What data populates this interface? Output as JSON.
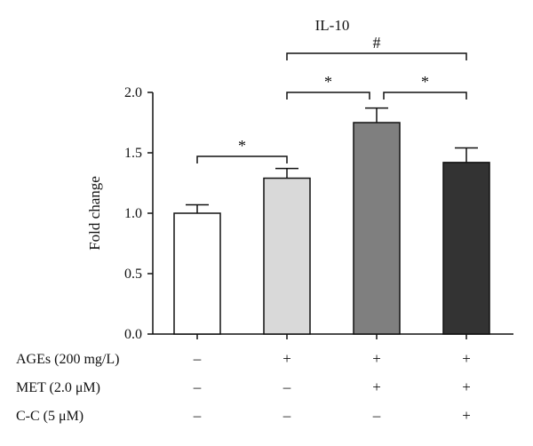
{
  "chart_data": {
    "type": "bar",
    "title": "IL-10",
    "ylabel": "Fold change",
    "xlabel": "",
    "ylim": [
      0,
      2.0
    ],
    "yticks": [
      "0.0",
      "0.5",
      "1.0",
      "1.5",
      "2.0"
    ],
    "grid": false,
    "bars": [
      {
        "value": 1.0,
        "error": 0.07,
        "color": "#ffffff"
      },
      {
        "value": 1.29,
        "error": 0.08,
        "color": "#d9d9d9"
      },
      {
        "value": 1.75,
        "error": 0.12,
        "color": "#7f7f7f"
      },
      {
        "value": 1.42,
        "error": 0.12,
        "color": "#333333"
      }
    ],
    "condition_rows": [
      {
        "label": "AGEs (200 mg/L)",
        "signs": [
          "–",
          "+",
          "+",
          "+"
        ]
      },
      {
        "label": "MET (2.0 μM)",
        "signs": [
          "–",
          "–",
          "+",
          "+"
        ]
      },
      {
        "label": "C-C (5 μM)",
        "signs": [
          "–",
          "–",
          "–",
          "+"
        ]
      }
    ],
    "significance": [
      {
        "from": 0,
        "to": 1,
        "label": "*"
      },
      {
        "from": 1,
        "to": 2,
        "label": "*"
      },
      {
        "from": 2,
        "to": 3,
        "label": "*"
      },
      {
        "from": 1,
        "to": 3,
        "label": "#"
      }
    ]
  }
}
